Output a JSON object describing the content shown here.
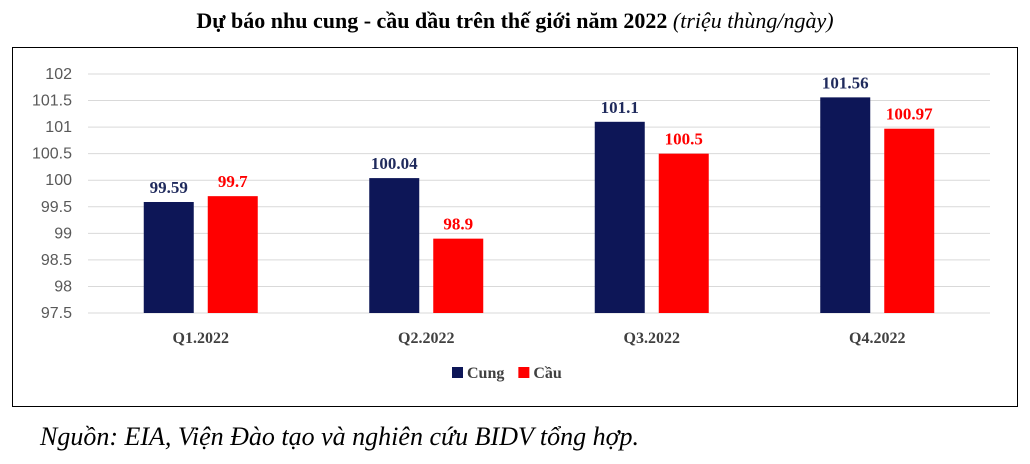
{
  "title": {
    "main": "Dự báo nhu cung - cầu dầu trên thế giới năm 2022",
    "unit": "(triệu thùng/ngày)"
  },
  "source": "Nguồn: EIA, Viện Đào tạo và nghiên cứu BIDV tổng hợp.",
  "chart_data": {
    "type": "bar",
    "title": "Dự báo nhu cung - cầu dầu trên thế giới năm 2022 (triệu thùng/ngày)",
    "categories": [
      "Q1.2022",
      "Q2.2022",
      "Q3.2022",
      "Q4.2022"
    ],
    "series": [
      {
        "name": "Cung",
        "values": [
          99.59,
          100.04,
          101.1,
          101.56
        ],
        "color": "#0d1657",
        "label_color": "#1f2a5c"
      },
      {
        "name": "Cầu",
        "values": [
          99.7,
          98.9,
          100.5,
          100.97
        ],
        "color": "#ff0000",
        "label_color": "#ff0000"
      }
    ],
    "value_labels": [
      [
        "99.59",
        "100.04",
        "101.1",
        "101.56"
      ],
      [
        "99.7",
        "98.9",
        "100.5",
        "100.97"
      ]
    ],
    "ylim": [
      97.5,
      102
    ],
    "yticks": [
      97.5,
      98,
      98.5,
      99,
      99.5,
      100,
      100.5,
      101,
      101.5,
      102
    ],
    "ytick_labels": [
      "97.5",
      "98",
      "98.5",
      "99",
      "99.5",
      "100",
      "100.5",
      "101",
      "101.5",
      "102"
    ],
    "grid": true,
    "gridline_color": "#d9d9d9",
    "legend_position": "bottom-center",
    "xlabel": "",
    "ylabel": ""
  }
}
